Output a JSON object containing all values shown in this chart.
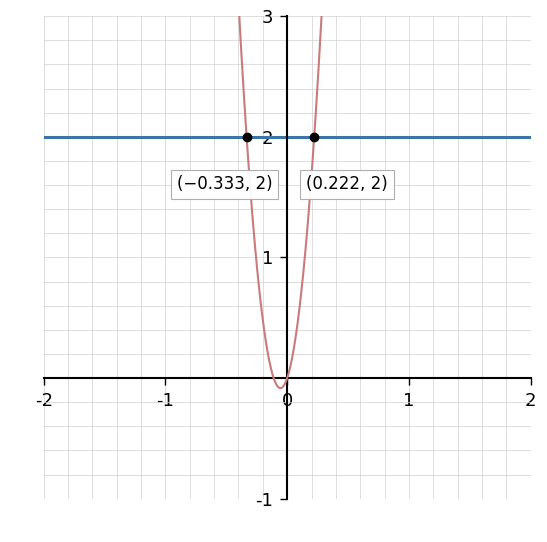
{
  "xlim": [
    -2,
    2
  ],
  "ylim": [
    -1,
    3
  ],
  "xticks": [
    -2,
    -1,
    0,
    1,
    2
  ],
  "yticks": [
    -1,
    1,
    2,
    3
  ],
  "curve_color": "#c97b7b",
  "line_color": "#3a74a8",
  "line_y": 2,
  "point1_x": -0.3333333,
  "point1_y": 2,
  "point2_x": 0.2222222,
  "point2_y": 2,
  "label1": "(−0.333, 2)",
  "label2": "(0.222, 2)",
  "grid_color": "#d0d0d0",
  "background_color": "#ffffff",
  "axis_color": "#000000",
  "curve_linewidth": 1.5,
  "line_linewidth": 2.2,
  "font_size": 13,
  "annotation_font_size": 12
}
